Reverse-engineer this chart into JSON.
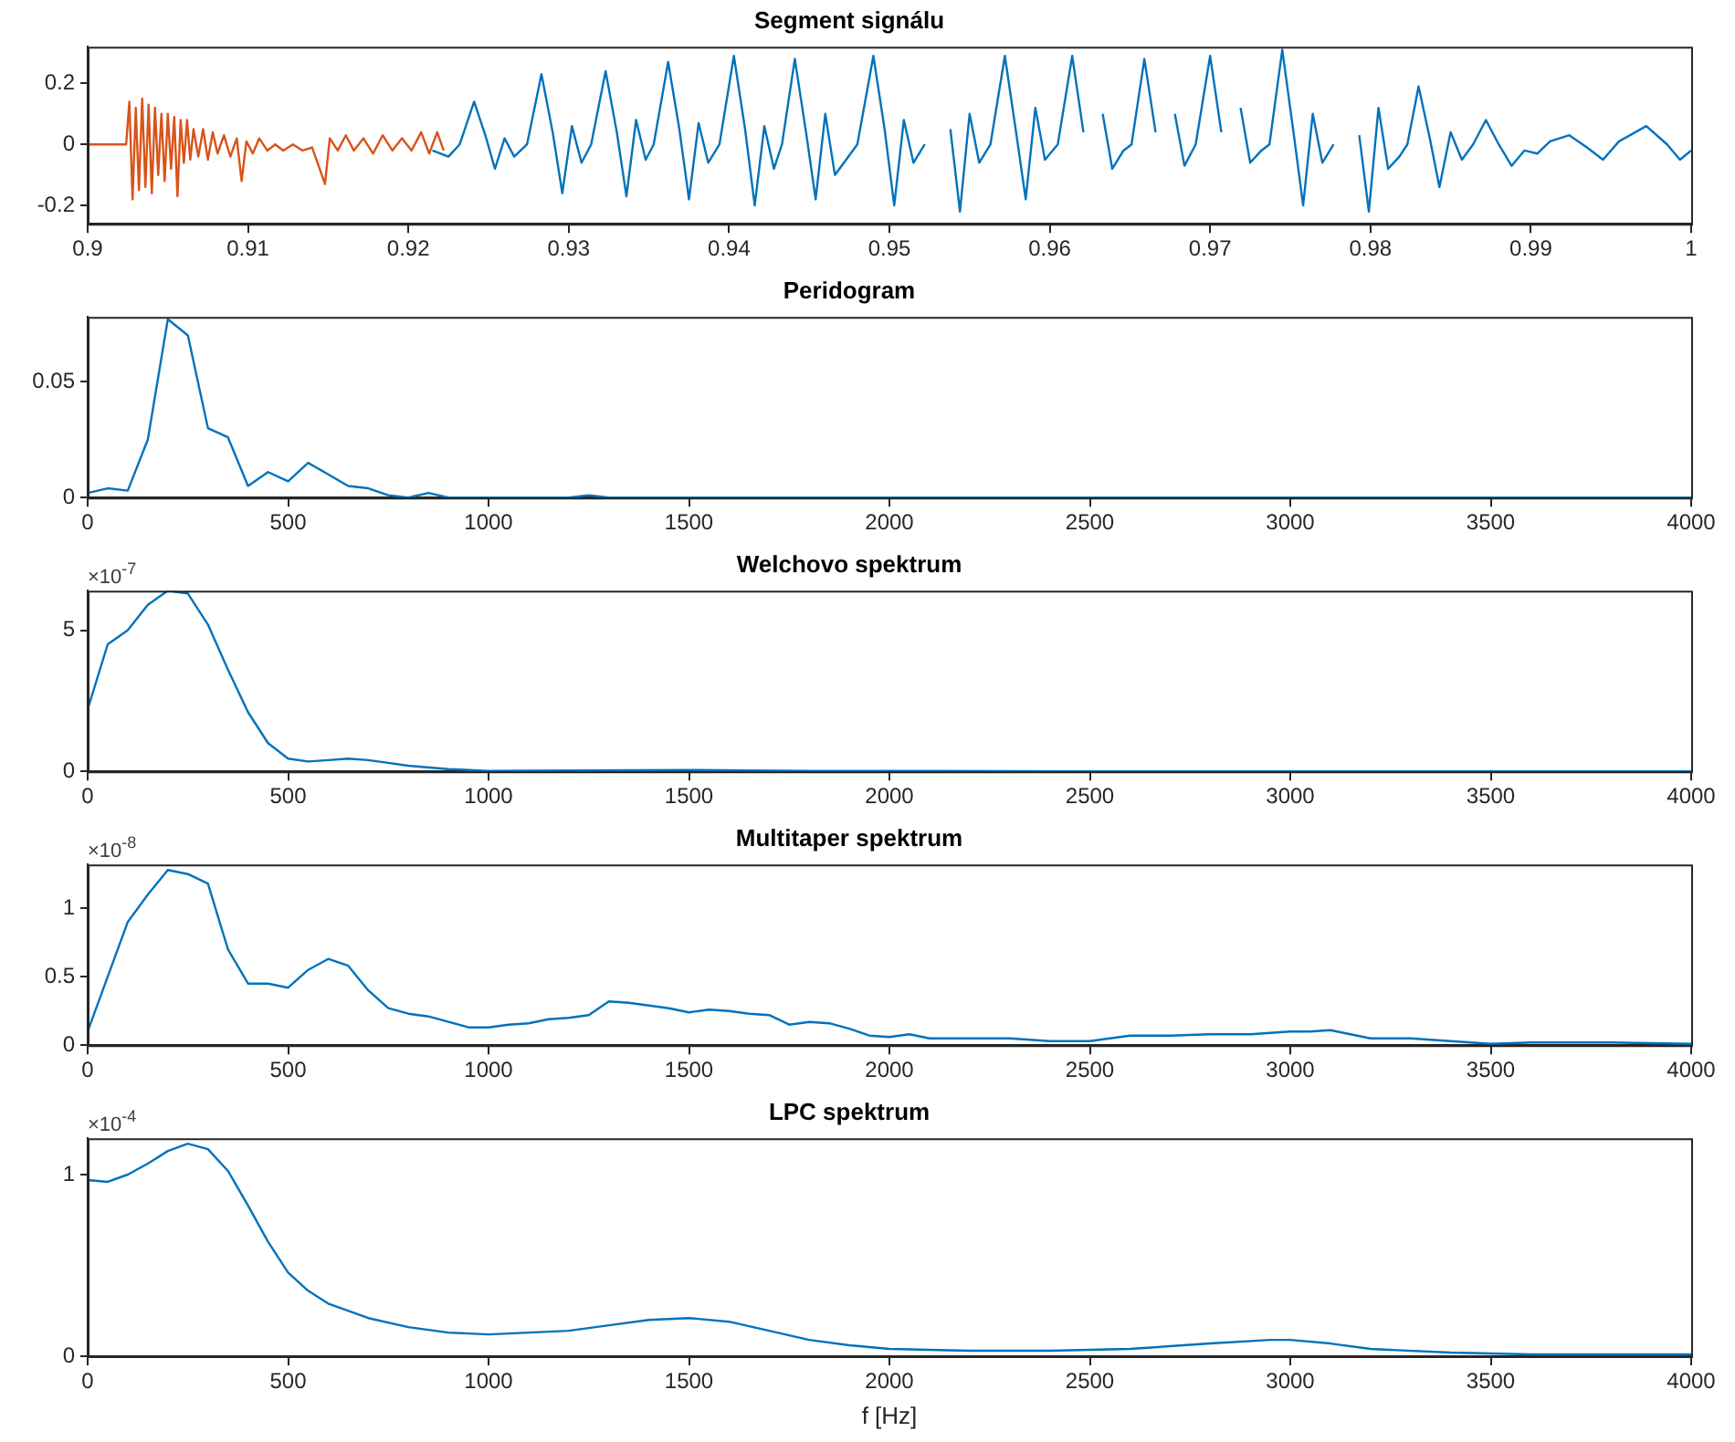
{
  "chart_data": [
    {
      "type": "line",
      "title": "Segment signálu",
      "xlim": [
        0.9,
        1
      ],
      "xticks": [
        0.9,
        0.91,
        0.92,
        0.93,
        0.94,
        0.95,
        0.96,
        0.97,
        0.98,
        0.99,
        1
      ],
      "ylim": [
        -0.26,
        0.32
      ],
      "yticks": [
        -0.2,
        0,
        0.2
      ],
      "grid": false,
      "series": [
        {
          "color": "#0072bd",
          "x": [
            0.9215,
            0.9225,
            0.9232,
            0.9241,
            0.9248,
            0.9254,
            0.926,
            0.9266,
            0.9274,
            0.9283,
            0.929,
            0.9296,
            0.9302,
            0.9308,
            0.9314,
            0.9323,
            0.933,
            0.9336,
            0.9342,
            0.9348,
            0.9353,
            0.9362,
            0.9369,
            0.9375,
            0.9381,
            0.9387,
            0.9394,
            0.9403,
            0.941,
            0.9416,
            0.9422,
            0.9428,
            0.9433,
            0.9441,
            0.9448,
            0.9454,
            0.946,
            0.9466,
            0.9473,
            0.948,
            0.949,
            0.9497,
            0.9503,
            0.9509,
            0.9515,
            0.9522,
            0.9531,
            0.9538,
            0.9544,
            0.955,
            0.9556,
            0.9563,
            0.9572,
            0.9579,
            0.9585,
            0.9591,
            0.9597,
            0.9605,
            0.9614,
            0.9621,
            0.9627,
            0.9633,
            0.9639,
            0.9646,
            0.9651,
            0.9659,
            0.9666,
            0.9672,
            0.9678,
            0.9684,
            0.9691,
            0.97,
            0.9707,
            0.9713,
            0.9719,
            0.9725,
            0.9732,
            0.9737,
            0.9745,
            0.9752,
            0.9758,
            0.9764,
            0.977,
            0.9777,
            0.9786,
            0.9793,
            0.9799,
            0.9805,
            0.9811,
            0.9818,
            0.9823,
            0.983,
            0.9837,
            0.9843,
            0.985,
            0.9857,
            0.9864,
            0.9872,
            0.988,
            0.9888,
            0.9896,
            0.9904,
            0.9912,
            0.9924,
            0.9935,
            0.9945,
            0.9955,
            0.9972,
            0.9985,
            0.9993,
            1
          ],
          "values": [
            -0.02,
            -0.04,
            0,
            0.14,
            0.03,
            -0.08,
            0.02,
            -0.04,
            0,
            0.23,
            0.04,
            -0.16,
            0.06,
            -0.06,
            0,
            0.24,
            0.04,
            -0.17,
            0.08,
            -0.05,
            0,
            0.27,
            0.05,
            -0.18,
            0.07,
            -0.06,
            0,
            0.29,
            0.05,
            -0.2,
            0.06,
            -0.08,
            0,
            0.28,
            0.04,
            -0.18,
            0.1,
            -0.1,
            -0.05,
            0,
            0.29,
            0.05,
            -0.2,
            0.08,
            -0.06,
            0,
            null,
            0.05,
            -0.22,
            0.1,
            -0.06,
            0,
            0.29,
            0.04,
            -0.18,
            0.12,
            -0.05,
            0,
            0.29,
            0.04,
            null,
            0.1,
            -0.08,
            -0.02,
            0,
            0.28,
            0.04,
            null,
            0.1,
            -0.07,
            0,
            0.29,
            0.04,
            null,
            0.12,
            -0.06,
            -0.02,
            0,
            0.31,
            0.04,
            -0.2,
            0.1,
            -0.06,
            0,
            null,
            0.03,
            -0.22,
            0.12,
            -0.08,
            -0.04,
            0,
            0.19,
            0.02,
            -0.14,
            0.04,
            -0.05,
            0,
            0.08,
            0,
            -0.07,
            -0.02,
            -0.03,
            0.01,
            0.03,
            -0.01,
            -0.05,
            0.01,
            0.06,
            0,
            -0.05,
            -0.02
          ]
        },
        {
          "color": "#d95319",
          "x": [
            0.9,
            0.902,
            0.9024,
            0.9026,
            0.9028,
            0.903,
            0.9032,
            0.9034,
            0.9036,
            0.9038,
            0.904,
            0.9042,
            0.9044,
            0.9046,
            0.9048,
            0.905,
            0.9052,
            0.9054,
            0.9056,
            0.9058,
            0.906,
            0.9062,
            0.9064,
            0.9066,
            0.9069,
            0.9072,
            0.9075,
            0.9078,
            0.9081,
            0.9085,
            0.9089,
            0.9093,
            0.9096,
            0.9099,
            0.9103,
            0.9107,
            0.9112,
            0.9117,
            0.9122,
            0.9128,
            0.9134,
            0.914,
            0.9148,
            0.9151,
            0.9156,
            0.9161,
            0.9166,
            0.9172,
            0.9178,
            0.9184,
            0.919,
            0.9196,
            0.9202,
            0.9208,
            0.9213,
            0.9218,
            0.9222
          ],
          "values": [
            0,
            0,
            0,
            0.14,
            -0.18,
            0.12,
            -0.15,
            0.15,
            -0.14,
            0.13,
            -0.16,
            0.12,
            -0.1,
            0.1,
            -0.12,
            0.1,
            -0.08,
            0.09,
            -0.17,
            0.08,
            -0.06,
            0.08,
            -0.05,
            0.05,
            -0.04,
            0.05,
            -0.05,
            0.04,
            -0.03,
            0.03,
            -0.04,
            0.02,
            -0.12,
            0.01,
            -0.03,
            0.02,
            -0.02,
            0,
            -0.02,
            0,
            -0.02,
            -0.01,
            -0.13,
            0.02,
            -0.02,
            0.03,
            -0.02,
            0.02,
            -0.03,
            0.03,
            -0.02,
            0.02,
            -0.02,
            0.04,
            -0.03,
            0.04,
            -0.02
          ]
        }
      ]
    },
    {
      "type": "line",
      "title": "Peridogram",
      "xlim": [
        0,
        4000
      ],
      "xticks": [
        0,
        500,
        1000,
        1500,
        2000,
        2500,
        3000,
        3500,
        4000
      ],
      "ylim": [
        0,
        0.078
      ],
      "yticks": [
        0,
        0.05
      ],
      "grid": false,
      "series": [
        {
          "color": "#0072bd",
          "x": [
            0,
            50,
            100,
            150,
            200,
            250,
            300,
            350,
            400,
            450,
            500,
            550,
            600,
            650,
            700,
            750,
            800,
            850,
            900,
            1000,
            1100,
            1200,
            1250,
            1300,
            1400,
            1500,
            1700,
            2000,
            2500,
            3000,
            3500,
            4000
          ],
          "values": [
            0.002,
            0.004,
            0.003,
            0.025,
            0.077,
            0.07,
            0.03,
            0.026,
            0.005,
            0.011,
            0.007,
            0.015,
            0.01,
            0.005,
            0.004,
            0.001,
            0,
            0.002,
            0,
            0,
            0,
            0,
            0.001,
            0,
            0,
            0,
            0,
            0,
            0,
            0,
            0,
            0
          ]
        }
      ]
    },
    {
      "type": "line",
      "title": "Welchovo spektrum",
      "annotations": [
        "×10$^{-7}$"
      ],
      "xlim": [
        0,
        4000
      ],
      "xticks": [
        0,
        500,
        1000,
        1500,
        2000,
        2500,
        3000,
        3500,
        4000
      ],
      "ylim": [
        0,
        6.4
      ],
      "yticks": [
        0,
        5
      ],
      "grid": false,
      "series": [
        {
          "color": "#0072bd",
          "x": [
            0,
            50,
            100,
            150,
            200,
            250,
            300,
            350,
            400,
            450,
            500,
            550,
            600,
            650,
            700,
            750,
            800,
            900,
            1000,
            1200,
            1500,
            1800,
            2000,
            2500,
            3000,
            3500,
            4000
          ],
          "values": [
            2.2,
            4.5,
            5.0,
            5.9,
            6.4,
            6.3,
            5.2,
            3.6,
            2.1,
            1.0,
            0.45,
            0.35,
            0.4,
            0.45,
            0.4,
            0.3,
            0.2,
            0.08,
            0.02,
            0.03,
            0.05,
            0.02,
            0.02,
            0,
            0,
            0,
            0
          ]
        }
      ]
    },
    {
      "type": "line",
      "title": "Multitaper spektrum",
      "annotations": [
        "×10$^{-8}$"
      ],
      "xlim": [
        0,
        4000
      ],
      "xticks": [
        0,
        500,
        1000,
        1500,
        2000,
        2500,
        3000,
        3500,
        4000
      ],
      "ylim": [
        0,
        1.32
      ],
      "yticks": [
        0,
        0.5,
        1
      ],
      "grid": false,
      "series": [
        {
          "color": "#0072bd",
          "x": [
            0,
            50,
            100,
            150,
            200,
            250,
            300,
            350,
            400,
            450,
            500,
            550,
            600,
            650,
            700,
            750,
            800,
            850,
            900,
            950,
            1000,
            1050,
            1100,
            1150,
            1200,
            1250,
            1300,
            1350,
            1400,
            1450,
            1500,
            1550,
            1600,
            1650,
            1700,
            1750,
            1800,
            1850,
            1900,
            1950,
            2000,
            2050,
            2100,
            2200,
            2300,
            2400,
            2500,
            2600,
            2700,
            2800,
            2900,
            3000,
            3050,
            3100,
            3150,
            3200,
            3300,
            3400,
            3500,
            3600,
            3800,
            4000
          ],
          "values": [
            0.1,
            0.5,
            0.9,
            1.1,
            1.28,
            1.25,
            1.18,
            0.7,
            0.45,
            0.45,
            0.42,
            0.55,
            0.63,
            0.58,
            0.4,
            0.27,
            0.23,
            0.21,
            0.17,
            0.13,
            0.13,
            0.15,
            0.16,
            0.19,
            0.2,
            0.22,
            0.32,
            0.31,
            0.29,
            0.27,
            0.24,
            0.26,
            0.25,
            0.23,
            0.22,
            0.15,
            0.17,
            0.16,
            0.12,
            0.07,
            0.06,
            0.08,
            0.05,
            0.05,
            0.05,
            0.03,
            0.03,
            0.07,
            0.07,
            0.08,
            0.08,
            0.1,
            0.1,
            0.11,
            0.08,
            0.05,
            0.05,
            0.03,
            0.01,
            0.02,
            0.02,
            0.01
          ]
        }
      ]
    },
    {
      "type": "line",
      "title": "LPC spektrum",
      "xlabel": "f [Hz]",
      "annotations": [
        "×10$^{-4}$"
      ],
      "xlim": [
        0,
        4000
      ],
      "xticks": [
        0,
        500,
        1000,
        1500,
        2000,
        2500,
        3000,
        3500,
        4000
      ],
      "ylim": [
        0,
        1.2
      ],
      "yticks": [
        0,
        1
      ],
      "grid": false,
      "series": [
        {
          "color": "#0072bd",
          "x": [
            0,
            50,
            100,
            150,
            200,
            250,
            300,
            350,
            400,
            450,
            500,
            550,
            600,
            700,
            800,
            900,
            1000,
            1100,
            1200,
            1300,
            1400,
            1500,
            1600,
            1700,
            1800,
            1900,
            2000,
            2200,
            2400,
            2600,
            2800,
            2950,
            3000,
            3100,
            3200,
            3400,
            3600,
            4000
          ],
          "values": [
            0.97,
            0.96,
            1.0,
            1.06,
            1.13,
            1.17,
            1.14,
            1.02,
            0.83,
            0.63,
            0.46,
            0.36,
            0.29,
            0.21,
            0.16,
            0.13,
            0.12,
            0.13,
            0.14,
            0.17,
            0.2,
            0.21,
            0.19,
            0.14,
            0.09,
            0.06,
            0.04,
            0.03,
            0.03,
            0.04,
            0.07,
            0.09,
            0.09,
            0.07,
            0.04,
            0.02,
            0.01,
            0.01
          ]
        }
      ]
    }
  ]
}
